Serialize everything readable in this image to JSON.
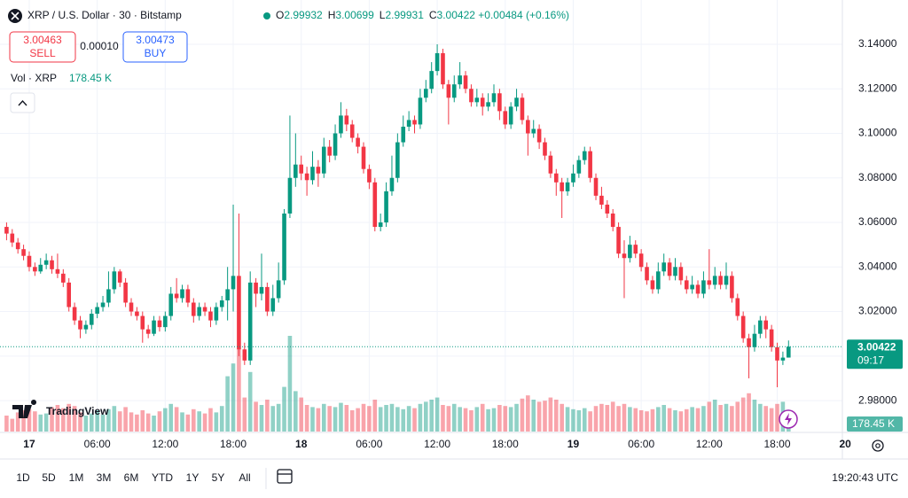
{
  "chart_data": {
    "type": "candlestick",
    "title": "XRP / U.S. Dollar · 30 · Bitstamp",
    "legend": [
      {
        "key": "O",
        "text": "2.99932"
      },
      {
        "key": "H",
        "text": "3.00699"
      },
      {
        "key": "L",
        "text": "2.99931"
      },
      {
        "key": "C",
        "text": "3.00422 +0.00484 (+0.16%)"
      }
    ],
    "sell_price": "3.00463",
    "sell_label": "SELL",
    "spread": "0.00010",
    "buy_price": "3.00473",
    "buy_label": "BUY",
    "volume_title": "Vol · XRP",
    "volume_title_value": "178.45 K",
    "brand": "TradingView",
    "last_price_label": "3.00422",
    "countdown": "09:17",
    "last_volume_label": "178.45 K",
    "ranges": [
      "1D",
      "5D",
      "1M",
      "3M",
      "6M",
      "YTD",
      "1Y",
      "5Y",
      "All"
    ],
    "clock": "19:20:43 UTC",
    "up_color": "#089981",
    "down_color": "#f23645",
    "grid": true,
    "xlim": [
      -1.16,
      147.5
    ],
    "ylim": [
      2.9669,
      3.1579
    ],
    "yticks": [
      {
        "value": 3.14,
        "label": "3.14000"
      },
      {
        "value": 3.12,
        "label": "3.12000"
      },
      {
        "value": 3.1,
        "label": "3.10000"
      },
      {
        "value": 3.08,
        "label": "3.08000"
      },
      {
        "value": 3.06,
        "label": "3.06000"
      },
      {
        "value": 3.04,
        "label": "3.04000"
      },
      {
        "value": 3.02,
        "label": "3.02000"
      },
      {
        "value": 3.0,
        "label": "3.00000"
      },
      {
        "value": 2.98,
        "label": "2.98000"
      }
    ],
    "xticks": [
      {
        "value": 4,
        "label": "17"
      },
      {
        "value": 16,
        "label": "06:00"
      },
      {
        "value": 28,
        "label": "12:00"
      },
      {
        "value": 40,
        "label": "18:00"
      },
      {
        "value": 52,
        "label": "18"
      },
      {
        "value": 64,
        "label": "06:00"
      },
      {
        "value": 76,
        "label": "12:00"
      },
      {
        "value": 88,
        "label": "18:00"
      },
      {
        "value": 100,
        "label": "19"
      },
      {
        "value": 112,
        "label": "06:00"
      },
      {
        "value": 124,
        "label": "12:00"
      },
      {
        "value": 136,
        "label": "18:00"
      },
      {
        "value": 148,
        "label": "20"
      }
    ],
    "ohlc": [
      [
        3.058,
        3.06,
        3.052,
        3.055
      ],
      [
        3.055,
        3.057,
        3.049,
        3.051
      ],
      [
        3.051,
        3.053,
        3.046,
        3.048
      ],
      [
        3.048,
        3.05,
        3.043,
        3.045
      ],
      [
        3.045,
        3.047,
        3.038,
        3.04
      ],
      [
        3.04,
        3.042,
        3.036,
        3.038
      ],
      [
        3.038,
        3.044,
        3.037,
        3.041
      ],
      [
        3.041,
        3.046,
        3.039,
        3.043
      ],
      [
        3.043,
        3.045,
        3.037,
        3.039
      ],
      [
        3.039,
        3.046,
        3.035,
        3.037
      ],
      [
        3.037,
        3.039,
        3.031,
        3.033
      ],
      [
        3.033,
        3.035,
        3.02,
        3.022
      ],
      [
        3.022,
        3.024,
        3.014,
        3.016
      ],
      [
        3.016,
        3.018,
        3.008,
        3.012
      ],
      [
        3.012,
        3.016,
        3.01,
        3.014
      ],
      [
        3.014,
        3.021,
        3.012,
        3.019
      ],
      [
        3.019,
        3.024,
        3.017,
        3.022
      ],
      [
        3.022,
        3.027,
        3.02,
        3.024
      ],
      [
        3.024,
        3.038,
        3.022,
        3.03
      ],
      [
        3.03,
        3.04,
        3.028,
        3.038
      ],
      [
        3.038,
        3.039,
        3.031,
        3.033
      ],
      [
        3.033,
        3.035,
        3.022,
        3.024
      ],
      [
        3.024,
        3.026,
        3.018,
        3.02
      ],
      [
        3.02,
        3.022,
        3.016,
        3.018
      ],
      [
        3.018,
        3.02,
        3.006,
        3.012
      ],
      [
        3.012,
        3.014,
        3.008,
        3.01
      ],
      [
        3.01,
        3.018,
        3.009,
        3.016
      ],
      [
        3.016,
        3.018,
        3.011,
        3.013
      ],
      [
        3.013,
        3.02,
        3.011,
        3.018
      ],
      [
        3.018,
        3.031,
        3.016,
        3.028
      ],
      [
        3.028,
        3.035,
        3.024,
        3.026
      ],
      [
        3.026,
        3.032,
        3.024,
        3.03
      ],
      [
        3.03,
        3.032,
        3.022,
        3.024
      ],
      [
        3.024,
        3.026,
        3.015,
        3.018
      ],
      [
        3.018,
        3.024,
        3.016,
        3.022
      ],
      [
        3.022,
        3.024,
        3.018,
        3.02
      ],
      [
        3.02,
        3.022,
        3.013,
        3.016
      ],
      [
        3.016,
        3.024,
        3.014,
        3.022
      ],
      [
        3.022,
        3.027,
        3.02,
        3.025
      ],
      [
        3.025,
        3.04,
        3.016,
        3.03
      ],
      [
        3.03,
        3.068,
        3.02,
        3.036
      ],
      [
        3.036,
        3.064,
        3.0,
        3.003
      ],
      [
        3.003,
        3.006,
        2.996,
        2.998
      ],
      [
        2.998,
        3.038,
        2.996,
        3.033
      ],
      [
        3.033,
        3.035,
        3.022,
        3.028
      ],
      [
        3.028,
        3.046,
        3.025,
        3.031
      ],
      [
        3.031,
        3.033,
        3.018,
        3.02
      ],
      [
        3.02,
        3.032,
        3.018,
        3.026
      ],
      [
        3.026,
        3.042,
        3.024,
        3.034
      ],
      [
        3.034,
        3.066,
        3.032,
        3.064
      ],
      [
        3.064,
        3.108,
        3.062,
        3.08
      ],
      [
        3.08,
        3.1,
        3.076,
        3.086
      ],
      [
        3.086,
        3.09,
        3.079,
        3.082
      ],
      [
        3.082,
        3.085,
        3.072,
        3.079
      ],
      [
        3.079,
        3.092,
        3.077,
        3.085
      ],
      [
        3.085,
        3.088,
        3.076,
        3.082
      ],
      [
        3.082,
        3.098,
        3.08,
        3.094
      ],
      [
        3.094,
        3.097,
        3.087,
        3.09
      ],
      [
        3.09,
        3.104,
        3.088,
        3.1
      ],
      [
        3.1,
        3.114,
        3.098,
        3.108
      ],
      [
        3.108,
        3.111,
        3.101,
        3.104
      ],
      [
        3.104,
        3.106,
        3.096,
        3.098
      ],
      [
        3.098,
        3.1,
        3.091,
        3.094
      ],
      [
        3.094,
        3.096,
        3.082,
        3.084
      ],
      [
        3.084,
        3.086,
        3.075,
        3.078
      ],
      [
        3.078,
        3.08,
        3.056,
        3.058
      ],
      [
        3.058,
        3.064,
        3.056,
        3.06
      ],
      [
        3.06,
        3.078,
        3.058,
        3.074
      ],
      [
        3.074,
        3.09,
        3.072,
        3.08
      ],
      [
        3.08,
        3.1,
        3.078,
        3.096
      ],
      [
        3.096,
        3.108,
        3.094,
        3.103
      ],
      [
        3.103,
        3.11,
        3.101,
        3.106
      ],
      [
        3.106,
        3.108,
        3.1,
        3.104
      ],
      [
        3.104,
        3.12,
        3.102,
        3.116
      ],
      [
        3.116,
        3.124,
        3.114,
        3.12
      ],
      [
        3.12,
        3.132,
        3.118,
        3.128
      ],
      [
        3.128,
        3.14,
        3.126,
        3.136
      ],
      [
        3.136,
        3.138,
        3.12,
        3.122
      ],
      [
        3.122,
        3.124,
        3.104,
        3.116
      ],
      [
        3.116,
        3.126,
        3.114,
        3.122
      ],
      [
        3.122,
        3.132,
        3.12,
        3.126
      ],
      [
        3.126,
        3.128,
        3.118,
        3.12
      ],
      [
        3.12,
        3.122,
        3.112,
        3.114
      ],
      [
        3.114,
        3.12,
        3.112,
        3.116
      ],
      [
        3.116,
        3.118,
        3.108,
        3.112
      ],
      [
        3.112,
        3.118,
        3.11,
        3.114
      ],
      [
        3.114,
        3.122,
        3.112,
        3.118
      ],
      [
        3.118,
        3.12,
        3.106,
        3.11
      ],
      [
        3.11,
        3.112,
        3.102,
        3.104
      ],
      [
        3.104,
        3.114,
        3.102,
        3.112
      ],
      [
        3.112,
        3.12,
        3.11,
        3.116
      ],
      [
        3.116,
        3.118,
        3.104,
        3.106
      ],
      [
        3.106,
        3.108,
        3.09,
        3.1
      ],
      [
        3.1,
        3.106,
        3.098,
        3.102
      ],
      [
        3.102,
        3.104,
        3.093,
        3.096
      ],
      [
        3.096,
        3.098,
        3.088,
        3.09
      ],
      [
        3.09,
        3.092,
        3.08,
        3.082
      ],
      [
        3.082,
        3.084,
        3.072,
        3.078
      ],
      [
        3.078,
        3.08,
        3.062,
        3.074
      ],
      [
        3.074,
        3.08,
        3.072,
        3.078
      ],
      [
        3.078,
        3.086,
        3.076,
        3.082
      ],
      [
        3.082,
        3.09,
        3.08,
        3.088
      ],
      [
        3.088,
        3.094,
        3.086,
        3.092
      ],
      [
        3.092,
        3.094,
        3.078,
        3.08
      ],
      [
        3.08,
        3.082,
        3.07,
        3.072
      ],
      [
        3.072,
        3.076,
        3.066,
        3.068
      ],
      [
        3.068,
        3.07,
        3.062,
        3.064
      ],
      [
        3.064,
        3.066,
        3.056,
        3.058
      ],
      [
        3.058,
        3.06,
        3.044,
        3.046
      ],
      [
        3.046,
        3.052,
        3.026,
        3.044
      ],
      [
        3.044,
        3.054,
        3.042,
        3.05
      ],
      [
        3.05,
        3.052,
        3.044,
        3.046
      ],
      [
        3.046,
        3.048,
        3.038,
        3.04
      ],
      [
        3.04,
        3.042,
        3.032,
        3.034
      ],
      [
        3.034,
        3.036,
        3.028,
        3.03
      ],
      [
        3.03,
        3.042,
        3.028,
        3.038
      ],
      [
        3.038,
        3.046,
        3.036,
        3.042
      ],
      [
        3.042,
        3.044,
        3.034,
        3.036
      ],
      [
        3.036,
        3.044,
        3.034,
        3.04
      ],
      [
        3.04,
        3.042,
        3.032,
        3.034
      ],
      [
        3.034,
        3.036,
        3.028,
        3.03
      ],
      [
        3.03,
        3.036,
        3.028,
        3.032
      ],
      [
        3.032,
        3.034,
        3.026,
        3.028
      ],
      [
        3.028,
        3.038,
        3.026,
        3.034
      ],
      [
        3.034,
        3.048,
        3.03,
        3.032
      ],
      [
        3.032,
        3.04,
        3.03,
        3.036
      ],
      [
        3.036,
        3.038,
        3.03,
        3.032
      ],
      [
        3.032,
        3.042,
        3.03,
        3.036
      ],
      [
        3.036,
        3.038,
        3.024,
        3.026
      ],
      [
        3.026,
        3.028,
        3.016,
        3.018
      ],
      [
        3.018,
        3.02,
        3.006,
        3.008
      ],
      [
        3.008,
        3.01,
        2.99,
        3.004
      ],
      [
        3.004,
        3.014,
        3.002,
        3.01
      ],
      [
        3.01,
        3.018,
        3.008,
        3.016
      ],
      [
        3.016,
        3.018,
        3.008,
        3.012
      ],
      [
        3.012,
        3.014,
        3.002,
        3.004
      ],
      [
        3.004,
        3.006,
        2.986,
        2.998
      ],
      [
        2.998,
        3.002,
        2.996,
        2.9993
      ],
      [
        2.99932,
        3.00699,
        2.99931,
        3.00422
      ]
    ],
    "volume": [
      150,
      120,
      180,
      200,
      210,
      190,
      160,
      170,
      230,
      250,
      220,
      260,
      240,
      180,
      150,
      170,
      200,
      160,
      210,
      240,
      190,
      230,
      180,
      160,
      200,
      170,
      150,
      190,
      220,
      260,
      230,
      180,
      160,
      210,
      190,
      170,
      220,
      180,
      240,
      520,
      640,
      780,
      320,
      560,
      280,
      250,
      300,
      240,
      260,
      420,
      900,
      380,
      320,
      250,
      230,
      220,
      260,
      240,
      230,
      270,
      250,
      200,
      220,
      260,
      240,
      300,
      230,
      250,
      260,
      230,
      210,
      240,
      220,
      260,
      280,
      300,
      320,
      250,
      240,
      260,
      230,
      220,
      200,
      230,
      260,
      210,
      220,
      250,
      240,
      230,
      260,
      310,
      340,
      300,
      280,
      290,
      320,
      300,
      260,
      230,
      210,
      200,
      220,
      190,
      240,
      260,
      250,
      280,
      240,
      260,
      230,
      220,
      200,
      190,
      210,
      230,
      250,
      220,
      200,
      190,
      210,
      230,
      220,
      240,
      280,
      300,
      250,
      260,
      240,
      280,
      320,
      360,
      300,
      260,
      240,
      220,
      260,
      280,
      178.45
    ]
  }
}
